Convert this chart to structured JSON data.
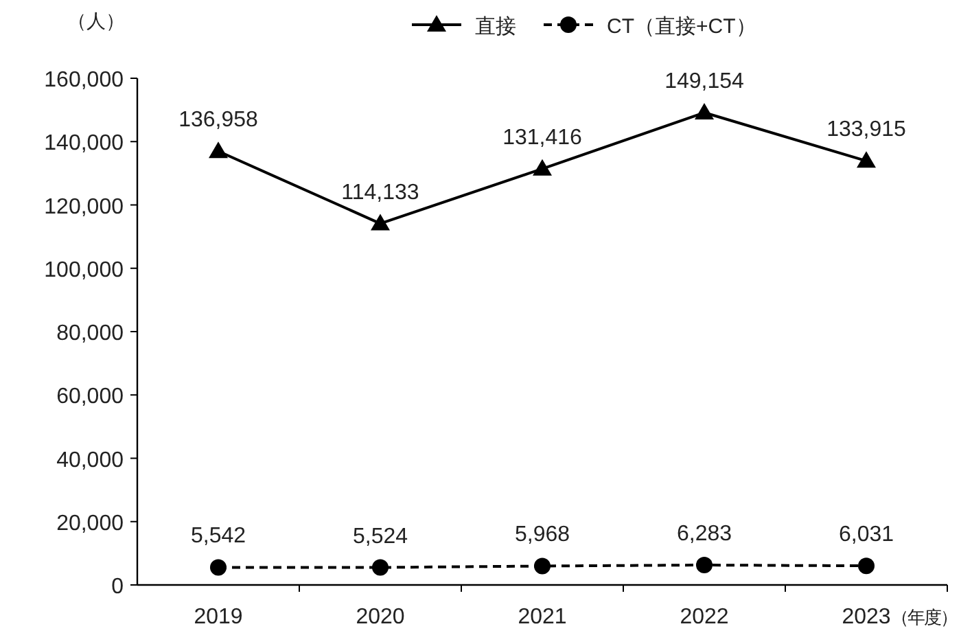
{
  "chart_data": {
    "type": "line",
    "categories": [
      "2019",
      "2020",
      "2021",
      "2022",
      "2023"
    ],
    "ylabel": "（人）",
    "xlabel": "（年度）",
    "ylim": [
      0,
      160000
    ],
    "yticks": [
      0,
      {
        "value": 20000,
        "label": "20,000"
      },
      {
        "value": 40000,
        "label": "40,000"
      },
      {
        "value": 60000,
        "label": "60,000"
      },
      {
        "value": 80000,
        "label": "80,000"
      },
      {
        "value": 100000,
        "label": "100,000"
      },
      {
        "value": 120000,
        "label": "120,000"
      },
      {
        "value": 140000,
        "label": "140,000"
      },
      {
        "value": 160000,
        "label": "160,000"
      }
    ],
    "grid": false,
    "legend": "top",
    "data_labels": true,
    "series": [
      {
        "name": "直接",
        "color": "#000000",
        "marker": "triangle",
        "line_style": "solid",
        "values": [
          136958,
          114133,
          131416,
          149154,
          133915
        ],
        "value_labels": [
          "136,958",
          "114,133",
          "131,416",
          "149,154",
          "133,915"
        ]
      },
      {
        "name": "CT（直接+CT）",
        "color": "#000000",
        "marker": "circle",
        "line_style": "dashed",
        "values": [
          5542,
          5524,
          5968,
          6283,
          6031
        ],
        "value_labels": [
          "5,542",
          "5,524",
          "5,968",
          "6,283",
          "6,031"
        ]
      }
    ]
  }
}
